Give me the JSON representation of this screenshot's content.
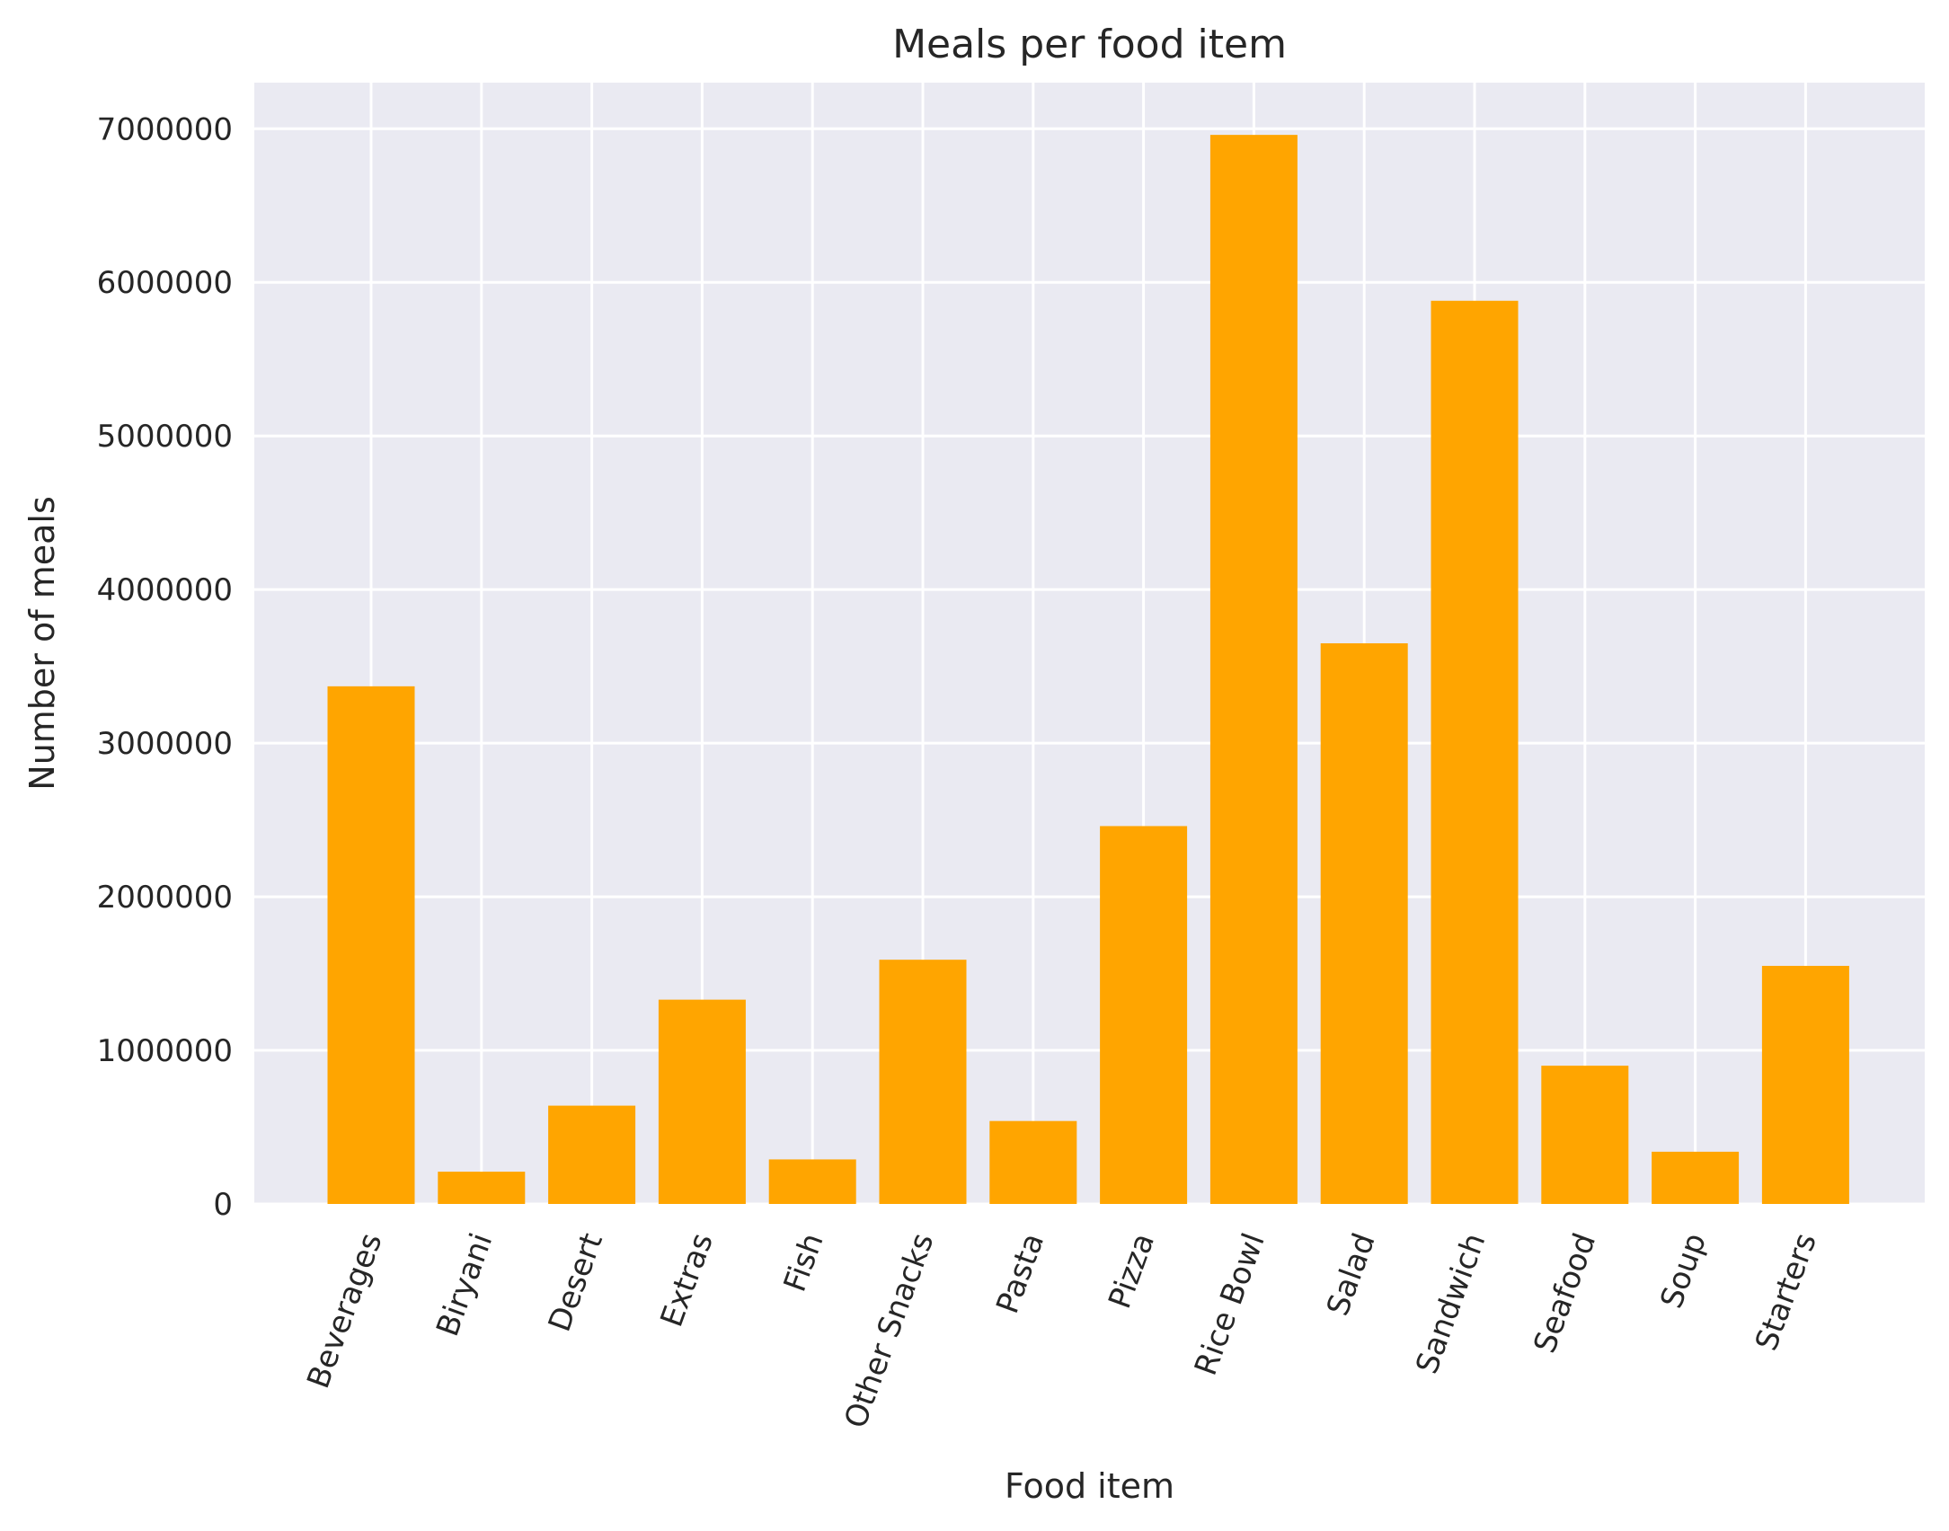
{
  "chart_data": {
    "type": "bar",
    "title": "Meals per food item",
    "xlabel": "Food item",
    "ylabel": "Number of meals",
    "categories": [
      "Beverages",
      "Biryani",
      "Desert",
      "Extras",
      "Fish",
      "Other Snacks",
      "Pasta",
      "Pizza",
      "Rice Bowl",
      "Salad",
      "Sandwich",
      "Seafood",
      "Soup",
      "Starters"
    ],
    "values": [
      3370000,
      210000,
      640000,
      1330000,
      290000,
      1590000,
      540000,
      2460000,
      6960000,
      3650000,
      5880000,
      900000,
      340000,
      1550000
    ],
    "yticks": [
      0,
      1000000,
      2000000,
      3000000,
      4000000,
      5000000,
      6000000,
      7000000
    ],
    "ytick_labels": [
      "0",
      "1000000",
      "2000000",
      "3000000",
      "4000000",
      "5000000",
      "6000000",
      "7000000"
    ],
    "ylim": [
      0,
      7300000
    ],
    "grid": true,
    "colors": {
      "bar": "#FFA500",
      "background": "#EAEAF2",
      "grid": "#FFFFFF"
    }
  }
}
